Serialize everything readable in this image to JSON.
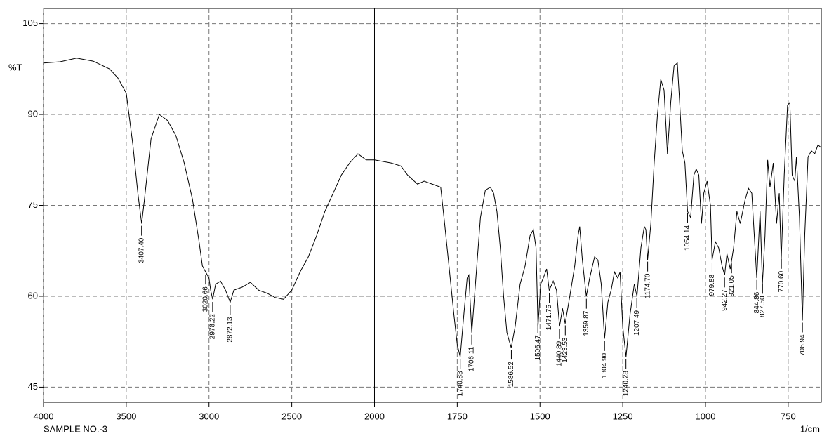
{
  "chart_data": {
    "type": "line",
    "y_label": "%T",
    "x_label": "1/cm",
    "sample": "SAMPLE NO.-3",
    "color": "#000000",
    "grid": true,
    "xlim": [
      4000,
      650
    ],
    "x_break": 2000,
    "x_break_ratio": 2,
    "xticks": [
      4000,
      3500,
      3000,
      2500,
      2000,
      1750,
      1500,
      1250,
      1000,
      750
    ],
    "ylim": [
      42.5,
      107.5
    ],
    "yticks": [
      45,
      60,
      75,
      90,
      105
    ],
    "x": [
      4000,
      3900,
      3800,
      3700,
      3600,
      3550,
      3500,
      3460,
      3430,
      3407,
      3390,
      3350,
      3300,
      3250,
      3200,
      3150,
      3100,
      3060,
      3040,
      3020,
      3000,
      2990,
      2978,
      2960,
      2930,
      2900,
      2872,
      2850,
      2800,
      2750,
      2700,
      2650,
      2600,
      2550,
      2500,
      2450,
      2400,
      2350,
      2300,
      2250,
      2200,
      2150,
      2100,
      2050,
      2000,
      1950,
      1920,
      1900,
      1870,
      1850,
      1800,
      1790,
      1775,
      1760,
      1750,
      1741,
      1730,
      1720,
      1715,
      1706,
      1695,
      1680,
      1665,
      1650,
      1640,
      1630,
      1620,
      1610,
      1600,
      1587,
      1575,
      1560,
      1545,
      1530,
      1520,
      1512,
      1506,
      1498,
      1490,
      1480,
      1472,
      1460,
      1450,
      1441,
      1432,
      1424,
      1410,
      1395,
      1385,
      1380,
      1372,
      1360,
      1350,
      1335,
      1325,
      1315,
      1305,
      1295,
      1285,
      1275,
      1265,
      1258,
      1250,
      1240,
      1228,
      1215,
      1207,
      1195,
      1185,
      1180,
      1175,
      1165,
      1155,
      1145,
      1135,
      1125,
      1115,
      1105,
      1095,
      1085,
      1078,
      1070,
      1062,
      1054,
      1045,
      1035,
      1028,
      1020,
      1012,
      1005,
      995,
      985,
      980,
      970,
      960,
      950,
      942,
      935,
      925,
      915,
      905,
      895,
      880,
      870,
      860,
      845,
      835,
      828,
      820,
      812,
      805,
      795,
      785,
      777,
      771,
      762,
      752,
      745,
      738,
      730,
      725,
      716,
      707,
      700,
      690,
      680,
      670,
      660,
      650
    ],
    "values": [
      98.5,
      98.7,
      99.3,
      98.8,
      97.5,
      96,
      93.5,
      85,
      77,
      72,
      76,
      86,
      90,
      89,
      86.5,
      82,
      76,
      69,
      65,
      64,
      63,
      61,
      59.5,
      62,
      62.5,
      61,
      59,
      61,
      61.5,
      62.3,
      61,
      60.5,
      59.8,
      59.5,
      61,
      64,
      66.5,
      70,
      74,
      77,
      80,
      82,
      83.5,
      82.5,
      82.5,
      82,
      81.5,
      80,
      78.5,
      79,
      78,
      73,
      65,
      57,
      52,
      50,
      57,
      63,
      63.5,
      54,
      62,
      73,
      77.5,
      78,
      77,
      74,
      68,
      60,
      54,
      51.5,
      55,
      62,
      65,
      70,
      71,
      68,
      55,
      62,
      63,
      64.5,
      61,
      62.5,
      61,
      55,
      58,
      55.5,
      60,
      65,
      70,
      71.5,
      66,
      60,
      63,
      66.5,
      66,
      62,
      53,
      59,
      61,
      64,
      63,
      64,
      55,
      50,
      57,
      62,
      60,
      68,
      71.5,
      71,
      66,
      72,
      82,
      90,
      95.8,
      94,
      83.5,
      92,
      98,
      98.5,
      92,
      84,
      82,
      74,
      73,
      80,
      81,
      80,
      72,
      77,
      79,
      75,
      66,
      69,
      68,
      65,
      63.5,
      67,
      64.5,
      68,
      74,
      72,
      76,
      77.8,
      77,
      63,
      74,
      62,
      70,
      82.5,
      78,
      82,
      72,
      77,
      66,
      80,
      91.5,
      92,
      80,
      79,
      83,
      73,
      56,
      70,
      83,
      84,
      83.5,
      85,
      84.5
    ],
    "peaks": [
      {
        "value": 3407.4,
        "label": "3407.40"
      },
      3020.66,
      2978.22,
      2872.13,
      1740.83,
      1706.11,
      1586.52,
      1506.47,
      1471.75,
      1440.89,
      1423.53,
      1359.87,
      {
        "value": 1304.9,
        "label": "1304.90"
      },
      1240.28,
      1207.49,
      {
        "value": 1174.7,
        "label": "1174.70"
      },
      1054.14,
      979.88,
      942.27,
      921.05,
      844.86,
      {
        "value": 827.5,
        "label": "827.50"
      },
      {
        "value": 770.6,
        "label": "770.60"
      },
      706.94
    ]
  }
}
